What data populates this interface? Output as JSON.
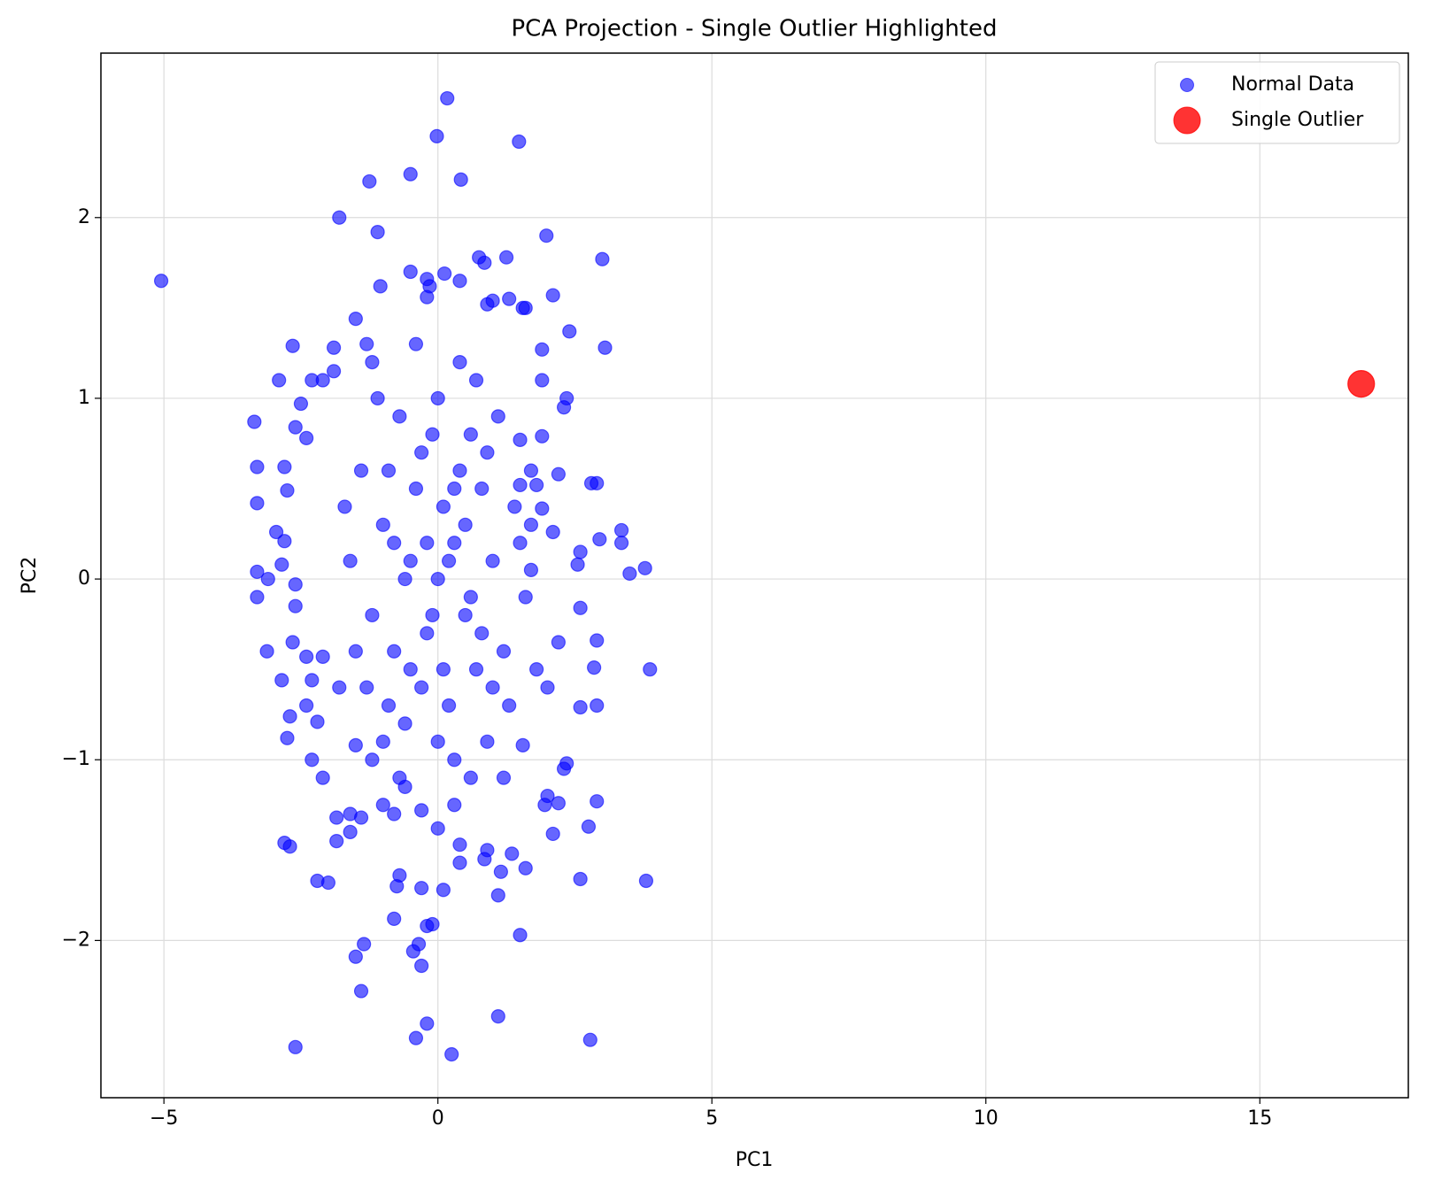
{
  "chart_data": {
    "type": "scatter",
    "title": "PCA Projection - Single Outlier Highlighted",
    "x_label": "PC1",
    "y_label": "PC2",
    "xlim": [
      -6.15,
      17.71
    ],
    "ylim": [
      -2.87,
      2.91
    ],
    "xticks": [
      {
        "value": -5,
        "label": "−5"
      },
      0,
      5,
      10,
      15
    ],
    "yticks": [
      {
        "value": -2,
        "label": "−2"
      },
      {
        "value": -1,
        "label": "−1"
      },
      0,
      1,
      2
    ],
    "grid": true,
    "legend": "upper right",
    "series": [
      {
        "name": "Normal Data",
        "color": "#0000ff",
        "x": [
          -5.05,
          0.17,
          -0.02,
          1.48,
          -0.5,
          -1.25,
          0.42,
          -1.8,
          -1.1,
          1.98,
          3.0,
          0.75,
          0.85,
          1.25,
          -0.5,
          0.12,
          0.4,
          -1.05,
          -0.2,
          2.1,
          1.6,
          3.05,
          2.4,
          -1.5,
          -3.35,
          -2.65,
          -2.9,
          -3.3,
          -3.3,
          -2.95,
          -3.3,
          -3.1,
          -3.3,
          -3.12,
          -2.85,
          -2.65,
          -2.7,
          -2.75,
          -2.8,
          -2.7,
          -2.2,
          -2.0,
          -2.6,
          -1.5,
          -1.4,
          -1.35,
          -0.45,
          -0.35,
          -0.3,
          -0.4,
          -0.2,
          0.25,
          1.1,
          2.78,
          1.5,
          -0.1,
          -0.2,
          -0.8,
          0.1,
          -0.3,
          -0.75,
          -0.7,
          1.1,
          1.6,
          2.6,
          3.8,
          2.75,
          2.9,
          2.1,
          3.87,
          3.78,
          3.5,
          3.35,
          3.35,
          2.95,
          2.55,
          2.6,
          2.9,
          2.8,
          2.6,
          2.9,
          2.85,
          2.9,
          2.6,
          2.3,
          2.35,
          1.95,
          2.2,
          2.0,
          1.55,
          1.3,
          0.9,
          1.0,
          -0.2,
          -0.15,
          -1.3,
          -1.2,
          -1.9,
          -1.9,
          -2.5,
          -2.3,
          -2.1,
          -2.4,
          -2.6,
          -2.8,
          -2.75,
          -2.8,
          -2.85,
          -2.6,
          -2.6,
          -2.4,
          -2.3,
          -2.1,
          -2.4,
          -2.3,
          -2.1,
          -2.2,
          -1.85,
          -1.85,
          -1.6,
          -1.6,
          -1.4,
          -1.5,
          -1.2,
          -1.0,
          -0.8,
          -0.6,
          -0.3,
          0.0,
          0.3,
          0.6,
          0.85,
          0.9,
          1.15,
          1.35,
          0.4,
          0.4,
          1.2,
          1.55,
          2.0,
          2.2,
          2.1,
          2.2,
          2.3,
          2.35,
          1.9,
          1.9,
          1.5,
          1.9,
          1.5,
          1.8,
          1.7,
          1.9,
          1.7,
          0,
          0.3,
          -0.5,
          0.5,
          -0.8,
          0.8,
          -0.3,
          0.2,
          1.0,
          -1.0,
          0.6,
          -0.6,
          1.2,
          -1.2,
          0.1,
          -0.2,
          0.4,
          -0.4,
          0.7,
          -0.7,
          1.4,
          -1.4,
          0.9,
          -0.9,
          0.0,
          0.3,
          -0.1,
          1.1,
          -1.1,
          1.3,
          -1.3,
          0.5,
          -0.5,
          0.2,
          -0.2,
          0.6,
          -0.6,
          0.8,
          -0.8,
          1.6,
          -1.6,
          1.5,
          -1.5,
          0.4,
          -0.4,
          0.7,
          -0.7,
          0.1,
          -0.1,
          0.3,
          -0.3,
          1.0,
          -1.0,
          0.9,
          -0.9,
          1.8,
          -1.8,
          1.7,
          -1.7,
          0.0
        ],
        "y": [
          1.65,
          2.66,
          2.45,
          2.42,
          2.24,
          2.2,
          2.21,
          2.0,
          1.92,
          1.9,
          1.77,
          1.78,
          1.75,
          1.78,
          1.7,
          1.69,
          1.65,
          1.62,
          1.66,
          1.57,
          1.5,
          1.28,
          1.37,
          1.44,
          0.87,
          1.29,
          1.1,
          0.62,
          0.42,
          0.26,
          0.04,
          0.0,
          -0.1,
          -0.4,
          -0.56,
          -0.35,
          -0.76,
          -0.88,
          -1.46,
          -1.48,
          -1.67,
          -1.68,
          -2.59,
          -2.09,
          -2.28,
          -2.02,
          -2.06,
          -2.02,
          -2.14,
          -2.54,
          -2.46,
          -2.63,
          -2.42,
          -2.55,
          -1.97,
          -1.91,
          -1.92,
          -1.88,
          -1.72,
          -1.71,
          -1.7,
          -1.64,
          -1.75,
          -1.6,
          -1.66,
          -1.67,
          -1.37,
          -1.23,
          -1.41,
          -0.5,
          0.06,
          0.03,
          0.2,
          0.27,
          0.22,
          0.08,
          0.15,
          0.53,
          0.53,
          -0.16,
          -0.34,
          -0.49,
          -0.7,
          -0.71,
          -1.05,
          -1.02,
          -1.25,
          -1.24,
          -1.2,
          1.5,
          1.55,
          1.52,
          1.54,
          1.56,
          1.62,
          1.3,
          1.2,
          1.28,
          1.15,
          0.97,
          1.1,
          1.1,
          0.78,
          0.84,
          0.62,
          0.49,
          0.21,
          0.08,
          -0.03,
          -0.15,
          -0.43,
          -0.56,
          -0.43,
          -0.7,
          -1.0,
          -1.1,
          -0.79,
          -1.32,
          -1.45,
          -1.3,
          -1.4,
          -1.32,
          -0.92,
          -1.0,
          -1.25,
          -1.3,
          -1.15,
          -1.28,
          -1.38,
          -1.25,
          -1.1,
          -1.55,
          -1.5,
          -1.62,
          -1.52,
          -1.57,
          -1.47,
          -1.1,
          -0.92,
          -0.6,
          -0.35,
          0.26,
          0.58,
          0.95,
          1.0,
          1.27,
          1.1,
          0.77,
          0.79,
          0.52,
          0.52,
          0.3,
          0.39,
          0.05,
          0,
          0.2,
          0.1,
          -0.2,
          -0.4,
          0.5,
          0.7,
          -0.7,
          0.1,
          0.3,
          0.8,
          -0.8,
          -0.4,
          -0.2,
          0.4,
          -0.3,
          0.6,
          0.5,
          -0.5,
          0.9,
          0.4,
          0.6,
          -0.9,
          -0.7,
          1.0,
          -1.0,
          0.8,
          0.9,
          1.0,
          -0.7,
          -0.6,
          0.3,
          -0.5,
          0.1,
          0.2,
          -0.1,
          0.0,
          -0.3,
          0.2,
          -0.1,
          0.1,
          0.2,
          -0.4,
          1.2,
          1.3,
          1.1,
          -1.1,
          -0.5,
          -0.2,
          0.5,
          -0.6,
          -0.6,
          -0.9,
          0.7,
          0.6,
          -0.5,
          -0.6,
          0.6,
          0.4,
          -0.9
        ]
      },
      {
        "name": "Single Outlier",
        "color": "#ff0000",
        "x": [
          16.85
        ],
        "y": [
          1.08
        ]
      }
    ]
  }
}
